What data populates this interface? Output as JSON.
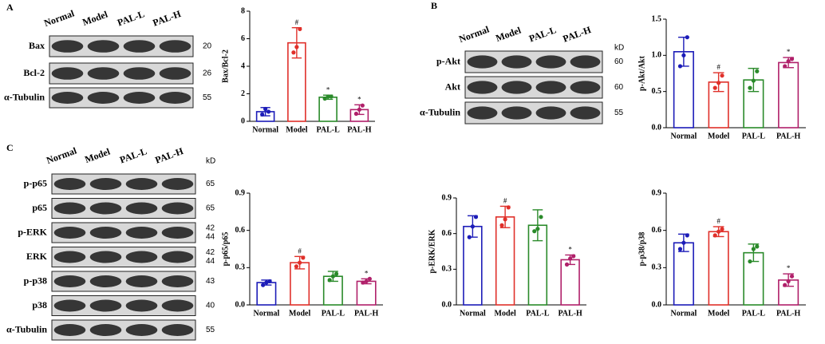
{
  "panels": [
    {
      "letter": "A",
      "lanes": [
        "Normal",
        "Model",
        "PAL-L",
        "PAL-H"
      ],
      "rows": [
        {
          "label": "Bax",
          "kd": [
            "20"
          ]
        },
        {
          "label": "Bcl-2",
          "kd": [
            "26"
          ]
        },
        {
          "label": "α-Tubulin",
          "kd": [
            "55"
          ]
        }
      ]
    },
    {
      "letter": "B",
      "kd_unit": "kD",
      "lanes": [
        "Normal",
        "Model",
        "PAL-L",
        "PAL-H"
      ],
      "rows": [
        {
          "label": "p-Akt",
          "kd": [
            "60"
          ]
        },
        {
          "label": "Akt",
          "kd": [
            "60"
          ]
        },
        {
          "label": "α-Tubulin",
          "kd": [
            "55"
          ]
        }
      ]
    },
    {
      "letter": "C",
      "kd_unit": "kD",
      "lanes": [
        "Normal",
        "Model",
        "PAL-L",
        "PAL-H"
      ],
      "rows": [
        {
          "label": "p-p65",
          "kd": [
            "65"
          ]
        },
        {
          "label": "p65",
          "kd": [
            "65"
          ]
        },
        {
          "label": "p-ERK",
          "kd": [
            "42",
            "44"
          ]
        },
        {
          "label": "ERK",
          "kd": [
            "42",
            "44"
          ]
        },
        {
          "label": "p-p38",
          "kd": [
            "43"
          ]
        },
        {
          "label": "p38",
          "kd": [
            "40"
          ]
        },
        {
          "label": "α-Tubulin",
          "kd": [
            "55"
          ]
        }
      ]
    }
  ],
  "chart_data": [
    {
      "type": "bar",
      "ylabel": "Bax/Bcl-2",
      "categories": [
        "Normal",
        "Model",
        "PAL-L",
        "PAL-H"
      ],
      "values": [
        0.7,
        5.7,
        1.75,
        0.85
      ],
      "errors": [
        0.3,
        1.1,
        0.15,
        0.35
      ],
      "points": [
        [
          0.5,
          0.9,
          0.7
        ],
        [
          5.0,
          5.4,
          6.7
        ],
        [
          1.65,
          1.8,
          1.8
        ],
        [
          0.55,
          0.85,
          1.15
        ]
      ],
      "colors": [
        "#1c1cb8",
        "#e0302a",
        "#2a8a2a",
        "#b0206a"
      ],
      "annotations": [
        null,
        "#",
        "*",
        "*"
      ],
      "ylim": [
        0,
        8
      ],
      "yticks": [
        0,
        2,
        4,
        6,
        8
      ]
    },
    {
      "type": "bar",
      "ylabel": "p-Akt/Akt",
      "categories": [
        "Normal",
        "Model",
        "PAL-L",
        "PAL-H"
      ],
      "values": [
        1.05,
        0.63,
        0.66,
        0.9
      ],
      "errors": [
        0.2,
        0.13,
        0.16,
        0.07
      ],
      "points": [
        [
          0.85,
          1.0,
          1.25
        ],
        [
          0.55,
          0.62,
          0.72
        ],
        [
          0.55,
          0.65,
          0.78
        ],
        [
          0.85,
          0.92,
          0.95
        ]
      ],
      "colors": [
        "#1c1cb8",
        "#e0302a",
        "#2a8a2a",
        "#b0206a"
      ],
      "annotations": [
        null,
        "#",
        null,
        "*"
      ],
      "ylim": [
        0,
        1.5
      ],
      "yticks": [
        {
          "value": 0,
          "label": "0.0"
        },
        {
          "value": 0.5,
          "label": "0.5"
        },
        {
          "value": 1,
          "label": "1.0"
        },
        {
          "value": 1.5,
          "label": "1.5"
        }
      ]
    },
    {
      "type": "bar",
      "ylabel": "p-p65/p65",
      "categories": [
        "Normal",
        "Model",
        "PAL-L",
        "PAL-H"
      ],
      "values": [
        0.18,
        0.34,
        0.23,
        0.19
      ],
      "errors": [
        0.02,
        0.05,
        0.04,
        0.02
      ],
      "points": [
        [
          0.16,
          0.18,
          0.19
        ],
        [
          0.31,
          0.34,
          0.38
        ],
        [
          0.2,
          0.23,
          0.25
        ],
        [
          0.18,
          0.19,
          0.21
        ]
      ],
      "colors": [
        "#1c1cb8",
        "#e0302a",
        "#2a8a2a",
        "#b0206a"
      ],
      "annotations": [
        null,
        "#",
        null,
        "*"
      ],
      "ylim": [
        0,
        0.9
      ],
      "yticks": [
        {
          "value": 0,
          "label": "0.0"
        },
        0.3,
        0.6,
        0.9
      ]
    },
    {
      "type": "bar",
      "ylabel": "p-ERK/ERK",
      "categories": [
        "Normal",
        "Model",
        "PAL-L",
        "PAL-H"
      ],
      "values": [
        0.66,
        0.74,
        0.67,
        0.38
      ],
      "errors": [
        0.09,
        0.09,
        0.13,
        0.04
      ],
      "points": [
        [
          0.57,
          0.66,
          0.74
        ],
        [
          0.67,
          0.72,
          0.82
        ],
        [
          0.62,
          0.64,
          0.74
        ],
        [
          0.34,
          0.39,
          0.41
        ]
      ],
      "colors": [
        "#1c1cb8",
        "#e0302a",
        "#2a8a2a",
        "#b0206a"
      ],
      "annotations": [
        null,
        "#",
        null,
        "*"
      ],
      "ylim": [
        0,
        0.9
      ],
      "yticks": [
        {
          "value": 0,
          "label": "0.0"
        },
        0.3,
        0.6,
        0.9
      ]
    },
    {
      "type": "bar",
      "ylabel": "p-p38/p38",
      "categories": [
        "Normal",
        "Model",
        "PAL-L",
        "PAL-H"
      ],
      "values": [
        0.5,
        0.59,
        0.42,
        0.2
      ],
      "errors": [
        0.07,
        0.04,
        0.07,
        0.05
      ],
      "points": [
        [
          0.45,
          0.5,
          0.56
        ],
        [
          0.56,
          0.59,
          0.61
        ],
        [
          0.35,
          0.45,
          0.47
        ],
        [
          0.16,
          0.19,
          0.23
        ]
      ],
      "colors": [
        "#1c1cb8",
        "#e0302a",
        "#2a8a2a",
        "#b0206a"
      ],
      "annotations": [
        null,
        "#",
        null,
        "*"
      ],
      "ylim": [
        0,
        0.9
      ],
      "yticks": [
        {
          "value": 0,
          "label": "0.0"
        },
        0.3,
        0.6,
        0.9
      ]
    }
  ]
}
